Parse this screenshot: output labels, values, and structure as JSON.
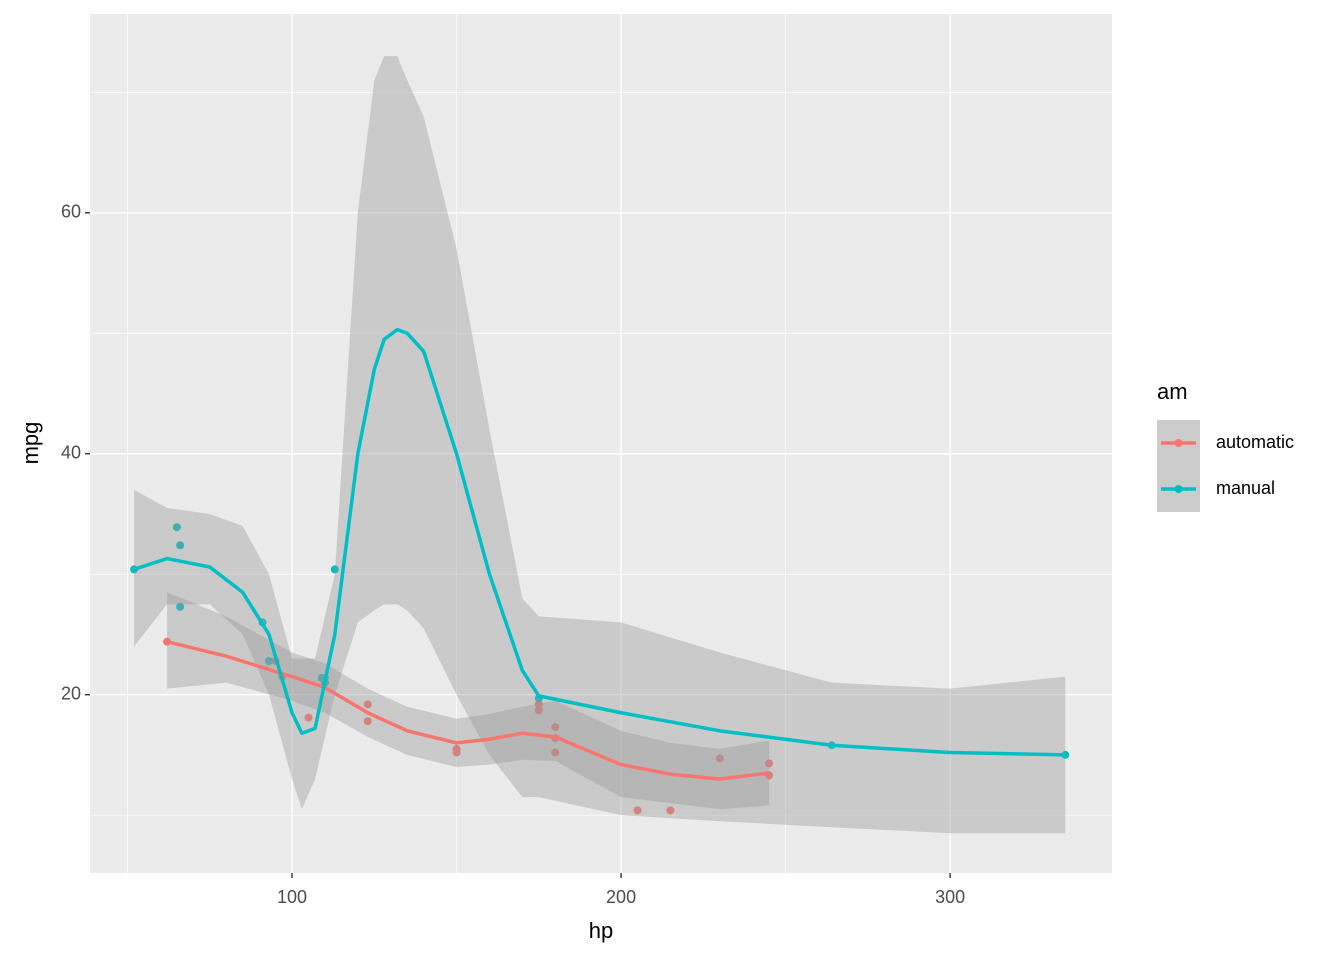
{
  "chart_data": {
    "type": "scatter",
    "x_label": "hp",
    "y_label": "mpg",
    "legend_title": "am",
    "legend": "right",
    "grid": true,
    "xlim": [
      38.6,
      349.2
    ],
    "ylim": [
      5.2,
      76.5
    ],
    "xticks": [
      100,
      200,
      300
    ],
    "yticks": [
      20,
      40,
      60
    ],
    "xminor": [
      50,
      150,
      250
    ],
    "yminor": [
      10,
      30,
      50,
      70
    ],
    "band_color": "#999999",
    "series": [
      {
        "name": "automatic",
        "color": "#F8766D",
        "x": [
          110,
          175,
          105,
          245,
          62,
          95,
          123,
          123,
          180,
          180,
          180,
          205,
          215,
          230,
          97,
          150,
          150,
          245,
          175
        ],
        "values": [
          21.4,
          18.7,
          18.1,
          14.3,
          24.4,
          22.8,
          19.2,
          17.8,
          16.4,
          17.3,
          15.2,
          10.4,
          10.4,
          14.7,
          21.5,
          15.5,
          15.2,
          13.3,
          19.2
        ],
        "smooth": {
          "x": [
            62,
            80,
            100,
            110,
            123,
            135,
            150,
            160,
            170,
            180,
            200,
            215,
            230,
            245
          ],
          "values": [
            24.4,
            23.2,
            21.5,
            20.6,
            18.5,
            17,
            16,
            16.3,
            16.8,
            16.5,
            14.2,
            13.4,
            13.0,
            13.5
          ],
          "lower": [
            20.5,
            21,
            19.5,
            18.5,
            16.5,
            15,
            14,
            14.2,
            14.6,
            14.5,
            11.5,
            11,
            10.5,
            10.8
          ],
          "upper": [
            28.5,
            26.5,
            23.5,
            22.6,
            20.5,
            19,
            18,
            18.4,
            19,
            19.5,
            17,
            16,
            15.5,
            16.2
          ]
        }
      },
      {
        "name": "manual",
        "color": "#00BFC4",
        "x": [
          110,
          110,
          93,
          66,
          52,
          65,
          66,
          91,
          113,
          264,
          175,
          335,
          109
        ],
        "values": [
          21,
          21,
          22.8,
          32.4,
          30.4,
          33.9,
          27.3,
          26,
          30.4,
          15.8,
          19.7,
          15,
          21.4
        ],
        "smooth": {
          "x": [
            52,
            62,
            75,
            85,
            93,
            100,
            103,
            107,
            113,
            120,
            125,
            128,
            132,
            135,
            140,
            150,
            160,
            170,
            175,
            200,
            230,
            264,
            300,
            335
          ],
          "values": [
            30.4,
            31.3,
            30.6,
            28.5,
            25,
            18.5,
            16.8,
            17.2,
            25,
            40,
            47,
            49.5,
            50.3,
            50,
            48.5,
            40,
            30,
            22,
            19.9,
            18.5,
            17,
            15.8,
            15.2,
            15
          ],
          "lower": [
            24,
            27.5,
            27.5,
            25,
            20,
            13,
            10.5,
            13,
            20,
            26,
            27,
            27.5,
            27.5,
            27,
            25.5,
            20,
            15,
            11.5,
            11.5,
            10,
            9.5,
            9,
            8.5,
            8.5
          ],
          "upper": [
            37,
            35.5,
            35,
            34,
            30,
            23,
            23,
            23,
            30,
            60,
            71,
            73,
            73,
            71,
            68,
            57,
            42,
            28,
            26.5,
            26,
            23.5,
            21,
            20.5,
            21.5
          ]
        }
      }
    ]
  }
}
